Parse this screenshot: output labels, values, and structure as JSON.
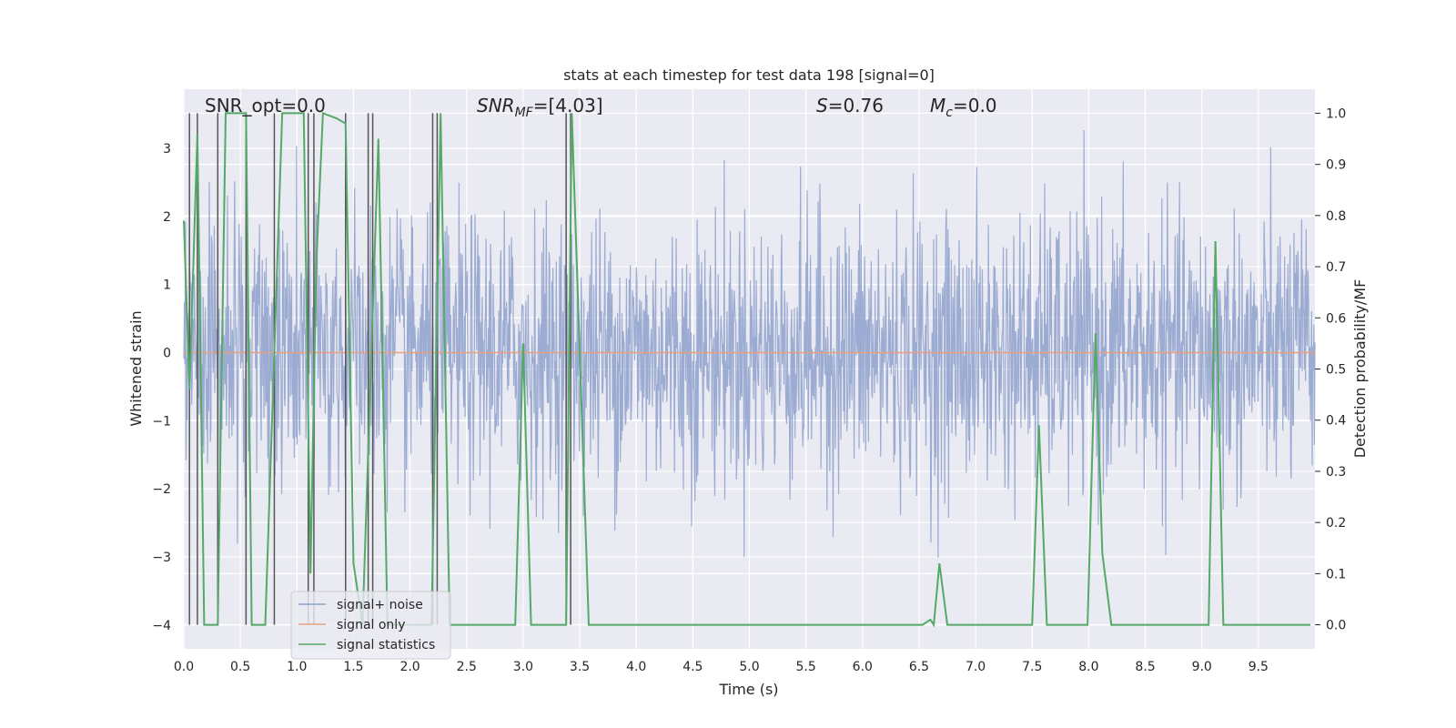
{
  "chart_data": {
    "type": "line",
    "title": "stats at each timestep for test data 198 [signal=0]",
    "xlabel": "Time (s)",
    "ylabel": "Whitened strain",
    "ylabel_right": "Detection probability/MF",
    "xlim": [
      0.0,
      10.0
    ],
    "ylim": [
      -4.35,
      3.87
    ],
    "ylim_right": [
      -0.047,
      1.047
    ],
    "x_ticks": [
      "0.0",
      "0.5",
      "1.0",
      "1.5",
      "2.0",
      "2.5",
      "3.0",
      "3.5",
      "4.0",
      "4.5",
      "5.0",
      "5.5",
      "6.0",
      "6.5",
      "7.0",
      "7.5",
      "8.0",
      "8.5",
      "9.0",
      "9.5"
    ],
    "y_ticks": [
      "3",
      "2",
      "1",
      "0",
      "−1",
      "−2",
      "−3",
      "−4"
    ],
    "y_ticks_right": [
      "1.0",
      "0.9",
      "0.8",
      "0.7",
      "0.6",
      "0.5",
      "0.4",
      "0.3",
      "0.2",
      "0.1",
      "0.0"
    ],
    "grid": true,
    "legend_position": "lower-left",
    "annotations": {
      "snr_opt": "SNR_opt=0.0",
      "snr_mf_main": "SNR",
      "snr_mf_sub": "MF",
      "snr_mf_value": "=[4.03]",
      "s_label": "S",
      "s_value": "=0.76",
      "mc_label": "M",
      "mc_sub": "c",
      "mc_value": "=0.0"
    },
    "series": [
      {
        "name": "signal+ noise",
        "color": "#8da0cb",
        "kind": "noise",
        "amplitude_std": 1.0,
        "envelope_points": [
          [
            0.0,
            2.6,
            -3.0
          ],
          [
            0.2,
            3.3,
            -2.4
          ],
          [
            0.55,
            2.2,
            -3.5
          ],
          [
            0.95,
            3.1,
            -2.8
          ],
          [
            1.6,
            2.5,
            -2.9
          ],
          [
            2.0,
            2.0,
            -3.4
          ],
          [
            3.4,
            3.6,
            -2.6
          ],
          [
            4.0,
            3.0,
            -3.0
          ],
          [
            5.2,
            3.4,
            -3.0
          ],
          [
            6.5,
            2.9,
            -3.2
          ],
          [
            6.9,
            3.5,
            -3.0
          ],
          [
            7.2,
            3.1,
            -2.7
          ],
          [
            7.8,
            3.3,
            -3.1
          ],
          [
            8.3,
            3.2,
            -2.5
          ],
          [
            8.95,
            2.3,
            -4.0
          ],
          [
            9.2,
            3.2,
            -2.9
          ],
          [
            9.65,
            3.0,
            -3.4
          ],
          [
            10.0,
            2.5,
            -2.7
          ]
        ]
      },
      {
        "name": "signal only",
        "color": "#e8a07e",
        "kind": "constant",
        "value": 0.0
      },
      {
        "name": "signal statistics",
        "color": "#55a868",
        "kind": "line",
        "axis": "right",
        "points": [
          [
            0.0,
            0.79
          ],
          [
            0.05,
            0.46
          ],
          [
            0.12,
            0.96
          ],
          [
            0.18,
            0.0
          ],
          [
            0.3,
            0.0
          ],
          [
            0.37,
            1.0
          ],
          [
            0.55,
            1.0
          ],
          [
            0.6,
            0.0
          ],
          [
            0.72,
            0.0
          ],
          [
            0.87,
            1.0
          ],
          [
            1.06,
            1.0
          ],
          [
            1.12,
            0.1
          ],
          [
            1.17,
            0.7
          ],
          [
            1.23,
            1.0
          ],
          [
            1.35,
            0.99
          ],
          [
            1.43,
            0.98
          ],
          [
            1.5,
            0.12
          ],
          [
            1.58,
            0.0
          ],
          [
            1.72,
            0.95
          ],
          [
            1.8,
            0.0
          ],
          [
            2.19,
            0.0
          ],
          [
            2.27,
            1.0
          ],
          [
            2.35,
            0.0
          ],
          [
            2.93,
            0.0
          ],
          [
            3.0,
            0.55
          ],
          [
            3.07,
            0.0
          ],
          [
            3.38,
            0.0
          ],
          [
            3.43,
            1.0
          ],
          [
            3.58,
            0.0
          ],
          [
            6.53,
            0.0
          ],
          [
            6.6,
            0.01
          ],
          [
            6.63,
            0.0
          ],
          [
            6.68,
            0.12
          ],
          [
            6.75,
            0.0
          ],
          [
            7.5,
            0.0
          ],
          [
            7.56,
            0.39
          ],
          [
            7.63,
            0.0
          ],
          [
            7.99,
            0.0
          ],
          [
            8.06,
            0.57
          ],
          [
            8.12,
            0.14
          ],
          [
            8.2,
            0.0
          ],
          [
            9.06,
            0.0
          ],
          [
            9.12,
            0.75
          ],
          [
            9.19,
            0.0
          ],
          [
            9.96,
            0.0
          ]
        ]
      }
    ],
    "vertical_markers": {
      "color": "#555555",
      "y_top_right": 1.0,
      "y_bottom_right": 0.0,
      "x": [
        0.05,
        0.12,
        0.3,
        0.55,
        0.8,
        1.1,
        1.15,
        1.43,
        1.63,
        1.67,
        2.2,
        2.24,
        3.38,
        3.42
      ]
    },
    "noise_seed": 198
  }
}
